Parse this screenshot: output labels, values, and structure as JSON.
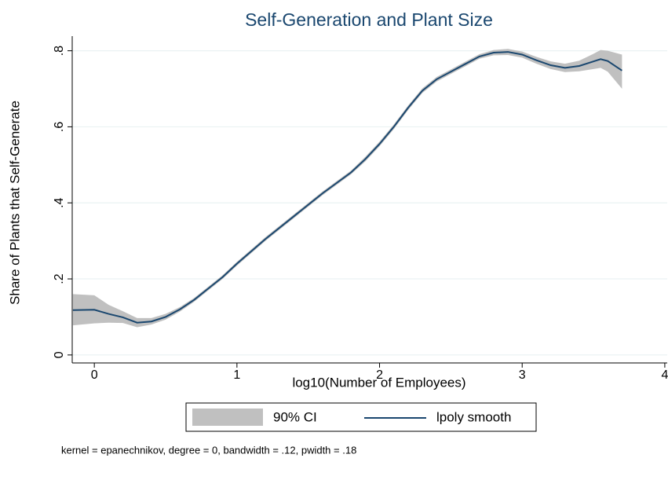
{
  "chart_data": {
    "type": "line_band",
    "title": "Self-Generation and Plant Size",
    "xlabel": "log10(Number of Employees)",
    "ylabel": "Share of Plants that Self-Generate",
    "note": "kernel = epanechnikov, degree = 0, bandwidth = .12, pwidth = .18",
    "x": [
      -0.15,
      0,
      0.1,
      0.2,
      0.3,
      0.4,
      0.5,
      0.6,
      0.7,
      0.8,
      0.9,
      1.0,
      1.2,
      1.4,
      1.6,
      1.8,
      1.9,
      2.0,
      2.1,
      2.2,
      2.3,
      2.4,
      2.5,
      2.6,
      2.7,
      2.8,
      2.9,
      3.0,
      3.1,
      3.2,
      3.3,
      3.4,
      3.5,
      3.55,
      3.6,
      3.7
    ],
    "series": [
      {
        "name": "90% CI",
        "color": "#c0c0c0",
        "lower": [
          0.078,
          0.083,
          0.085,
          0.084,
          0.073,
          0.08,
          0.093,
          0.114,
          0.14,
          0.17,
          0.2,
          0.235,
          0.3,
          0.36,
          0.42,
          0.475,
          0.509,
          0.549,
          0.594,
          0.644,
          0.689,
          0.719,
          0.739,
          0.759,
          0.779,
          0.788,
          0.789,
          0.782,
          0.766,
          0.752,
          0.744,
          0.746,
          0.752,
          0.755,
          0.745,
          0.7
        ],
        "upper": [
          0.16,
          0.157,
          0.132,
          0.115,
          0.097,
          0.097,
          0.108,
          0.126,
          0.15,
          0.18,
          0.21,
          0.245,
          0.31,
          0.37,
          0.43,
          0.485,
          0.521,
          0.561,
          0.606,
          0.656,
          0.701,
          0.731,
          0.751,
          0.771,
          0.791,
          0.802,
          0.805,
          0.798,
          0.784,
          0.772,
          0.766,
          0.774,
          0.792,
          0.802,
          0.8,
          0.79
        ]
      },
      {
        "name": "lpoly smooth",
        "color": "#1a476f",
        "values": [
          0.118,
          0.119,
          0.108,
          0.099,
          0.085,
          0.088,
          0.1,
          0.12,
          0.145,
          0.175,
          0.205,
          0.24,
          0.305,
          0.365,
          0.425,
          0.48,
          0.515,
          0.555,
          0.6,
          0.65,
          0.695,
          0.725,
          0.745,
          0.765,
          0.785,
          0.795,
          0.797,
          0.79,
          0.775,
          0.762,
          0.755,
          0.76,
          0.772,
          0.778,
          0.773,
          0.748
        ]
      }
    ],
    "xlim": [
      -0.155,
      4.017
    ],
    "xticks": [
      0,
      1,
      2,
      3,
      4
    ],
    "ylim": [
      -0.021,
      0.855
    ],
    "yticks": [
      0,
      {
        "value": 0.2,
        "label": ".2"
      },
      {
        "value": 0.4,
        "label": ".4"
      },
      {
        "value": 0.6,
        "label": ".6"
      },
      {
        "value": 0.8,
        "label": ".8"
      }
    ],
    "grid": true
  }
}
